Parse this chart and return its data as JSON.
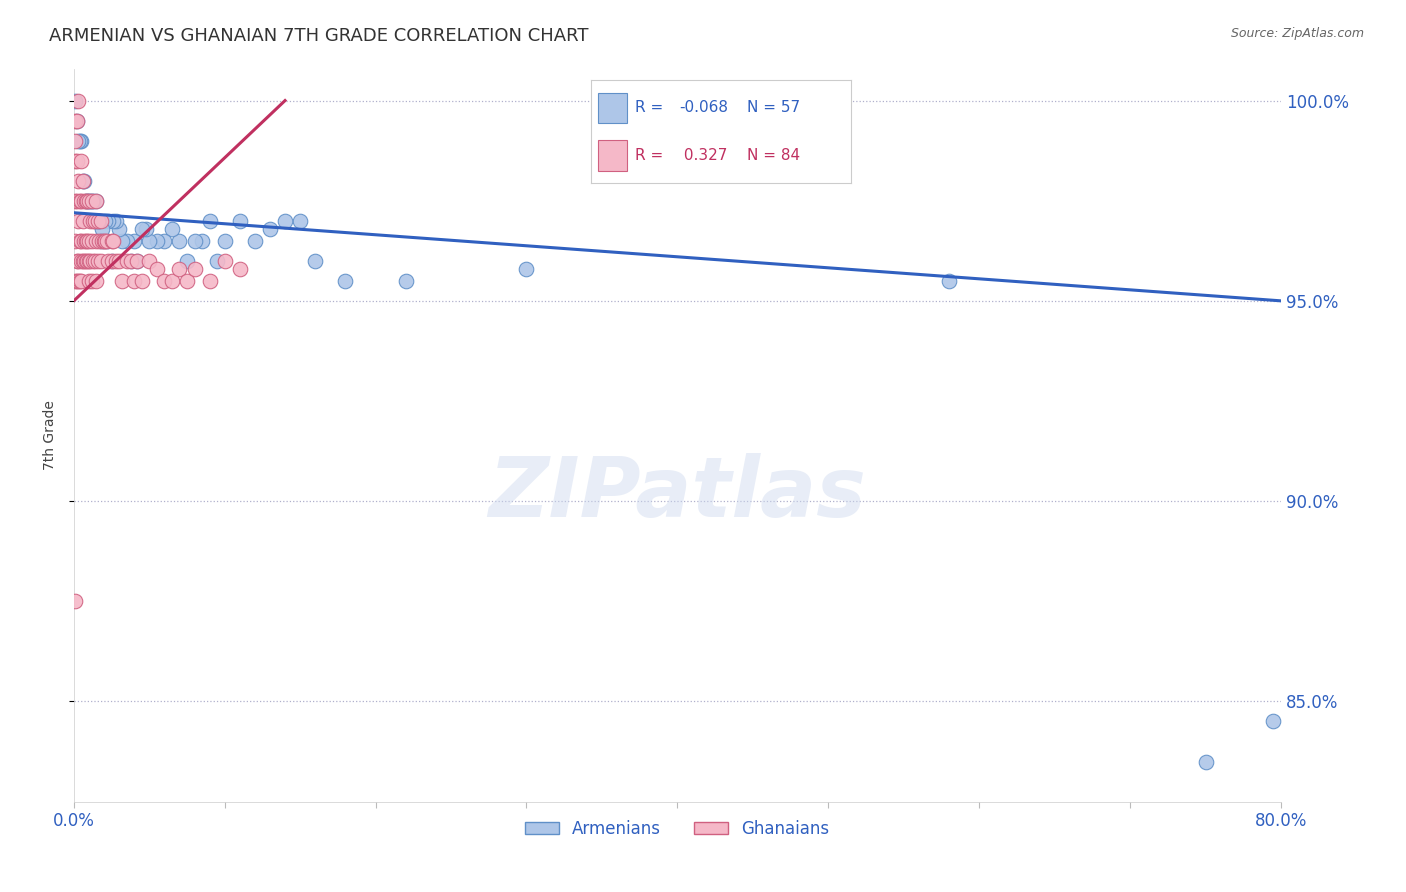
{
  "title": "ARMENIAN VS GHANAIAN 7TH GRADE CORRELATION CHART",
  "source": "Source: ZipAtlas.com",
  "ylabel": "7th Grade",
  "legend_armenians": "Armenians",
  "legend_ghanaians": "Ghanaians",
  "r_armenian": -0.068,
  "n_armenian": 57,
  "r_ghanaian": 0.327,
  "n_ghanaian": 84,
  "watermark": "ZIPatlas",
  "xlim": [
    0.0,
    0.8
  ],
  "ylim": [
    0.825,
    1.008
  ],
  "ytick_labels": [
    "85.0%",
    "90.0%",
    "95.0%",
    "100.0%"
  ],
  "ytick_values": [
    0.85,
    0.9,
    0.95,
    1.0
  ],
  "xtick_values": [
    0.0,
    0.1,
    0.2,
    0.3,
    0.4,
    0.5,
    0.6,
    0.7,
    0.8
  ],
  "color_armenian": "#aec6e8",
  "color_ghanaian": "#f5b8c8",
  "line_color_armenian": "#3060c0",
  "line_color_ghanaian": "#c03060",
  "dot_edge_armenian": "#6090c8",
  "dot_edge_ghanaian": "#d06080",
  "blue_text": "#3060c0",
  "pink_text": "#c03060",
  "armenian_x": [
    0.58,
    0.3,
    0.22,
    0.18,
    0.16,
    0.15,
    0.14,
    0.13,
    0.12,
    0.11,
    0.1,
    0.095,
    0.09,
    0.085,
    0.08,
    0.075,
    0.07,
    0.065,
    0.06,
    0.055,
    0.05,
    0.048,
    0.045,
    0.042,
    0.04,
    0.038,
    0.035,
    0.032,
    0.03,
    0.028,
    0.026,
    0.025,
    0.023,
    0.022,
    0.021,
    0.02,
    0.019,
    0.018,
    0.017,
    0.016,
    0.015,
    0.014,
    0.013,
    0.012,
    0.011,
    0.01,
    0.009,
    0.008,
    0.007,
    0.006,
    0.005,
    0.004,
    0.003,
    0.002,
    0.001,
    0.75,
    0.795
  ],
  "armenian_y": [
    0.955,
    0.958,
    0.955,
    0.955,
    0.96,
    0.97,
    0.97,
    0.968,
    0.965,
    0.97,
    0.965,
    0.96,
    0.97,
    0.965,
    0.965,
    0.96,
    0.965,
    0.968,
    0.965,
    0.965,
    0.965,
    0.968,
    0.968,
    0.96,
    0.965,
    0.96,
    0.965,
    0.965,
    0.968,
    0.97,
    0.97,
    0.96,
    0.97,
    0.965,
    0.97,
    0.965,
    0.968,
    0.965,
    0.97,
    0.97,
    0.975,
    0.97,
    0.975,
    0.975,
    0.975,
    0.975,
    0.975,
    0.975,
    0.98,
    0.98,
    0.99,
    0.99,
    0.99,
    0.995,
    1.0,
    0.835,
    0.845
  ],
  "ghanaian_x": [
    0.001,
    0.001,
    0.001,
    0.001,
    0.001,
    0.002,
    0.002,
    0.002,
    0.002,
    0.003,
    0.003,
    0.003,
    0.003,
    0.004,
    0.004,
    0.004,
    0.005,
    0.005,
    0.005,
    0.005,
    0.005,
    0.006,
    0.006,
    0.006,
    0.007,
    0.007,
    0.007,
    0.008,
    0.008,
    0.008,
    0.009,
    0.009,
    0.009,
    0.01,
    0.01,
    0.01,
    0.01,
    0.011,
    0.011,
    0.012,
    0.012,
    0.012,
    0.013,
    0.013,
    0.014,
    0.014,
    0.015,
    0.015,
    0.015,
    0.016,
    0.016,
    0.017,
    0.018,
    0.018,
    0.019,
    0.02,
    0.021,
    0.022,
    0.023,
    0.025,
    0.025,
    0.026,
    0.028,
    0.03,
    0.032,
    0.035,
    0.038,
    0.04,
    0.042,
    0.045,
    0.05,
    0.055,
    0.06,
    0.065,
    0.07,
    0.075,
    0.08,
    0.09,
    0.1,
    0.11,
    0.001,
    0.002,
    0.003,
    0.001
  ],
  "ghanaian_y": [
    0.975,
    0.985,
    0.99,
    0.965,
    0.955,
    0.985,
    0.975,
    0.96,
    0.955,
    0.98,
    0.97,
    0.96,
    0.955,
    0.975,
    0.965,
    0.955,
    0.985,
    0.975,
    0.965,
    0.96,
    0.955,
    0.98,
    0.97,
    0.96,
    0.975,
    0.965,
    0.96,
    0.975,
    0.965,
    0.96,
    0.975,
    0.965,
    0.96,
    0.975,
    0.965,
    0.96,
    0.955,
    0.97,
    0.96,
    0.975,
    0.965,
    0.955,
    0.97,
    0.96,
    0.97,
    0.96,
    0.975,
    0.965,
    0.955,
    0.97,
    0.96,
    0.965,
    0.97,
    0.96,
    0.965,
    0.965,
    0.965,
    0.965,
    0.96,
    0.965,
    0.96,
    0.965,
    0.96,
    0.96,
    0.955,
    0.96,
    0.96,
    0.955,
    0.96,
    0.955,
    0.96,
    0.958,
    0.955,
    0.955,
    0.958,
    0.955,
    0.958,
    0.955,
    0.96,
    0.958,
    0.995,
    0.995,
    1.0,
    0.875
  ]
}
